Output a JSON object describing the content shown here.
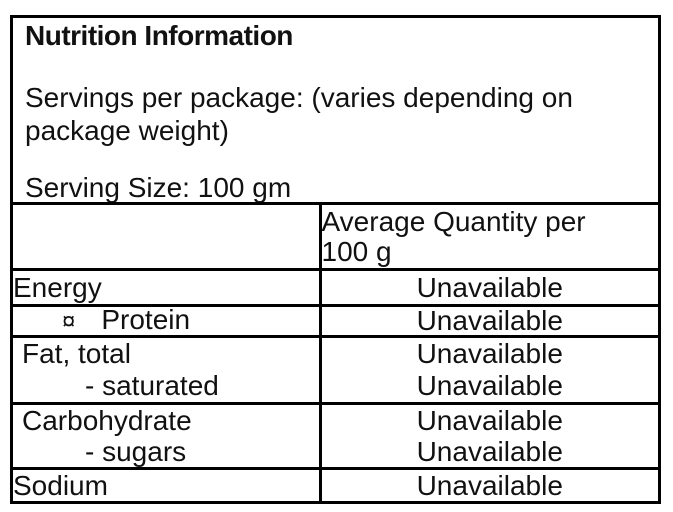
{
  "colors": {
    "border": "#000000",
    "text": "#111111",
    "background": "#ffffff"
  },
  "intro": {
    "title": "Nutrition Information",
    "servings_lines": [
      "Servings per package: (varies depending on",
      "package weight)"
    ],
    "serving_size": "Serving Size: 100 gm"
  },
  "table": {
    "header": {
      "quantity_lines": [
        "Average Quantity per",
        "100 g"
      ]
    },
    "rows": [
      {
        "label": "Energy",
        "value": "Unavailable"
      },
      {
        "bullet": "¤",
        "label": "Protein",
        "value": "Unavailable"
      },
      {
        "label": "Fat, total",
        "sub_label": "- saturated",
        "value": "Unavailable",
        "sub_value": "Unavailable"
      },
      {
        "label": "Carbohydrate",
        "sub_label": "- sugars",
        "value": "Unavailable",
        "sub_value": "Unavailable"
      },
      {
        "label": "Sodium",
        "value": "Unavailable"
      }
    ]
  }
}
